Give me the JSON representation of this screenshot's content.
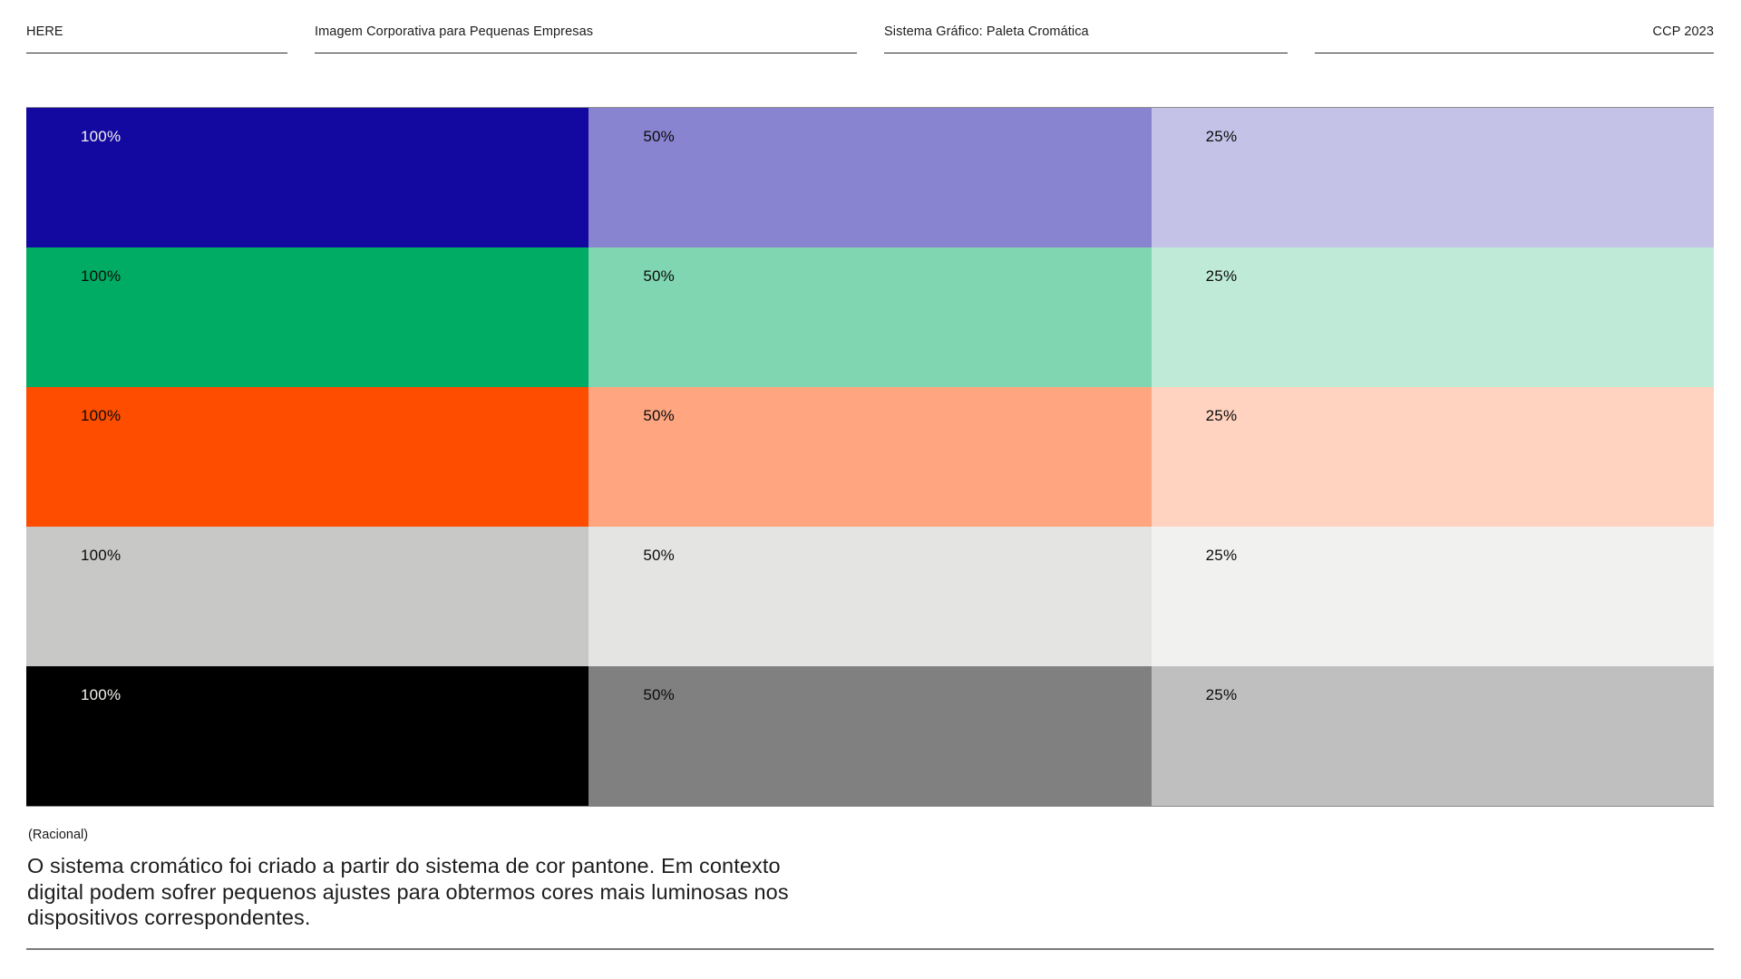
{
  "header": {
    "columns": [
      {
        "label": "HERE"
      },
      {
        "label": "Imagem Corporativa para Pequenas Empresas"
      },
      {
        "label": "Sistema Gráfico: Paleta Cromática"
      },
      {
        "label": "CCP 2023"
      }
    ]
  },
  "palette": {
    "tint_labels": [
      "100%",
      "50%",
      "25%"
    ],
    "rows": [
      {
        "name": "primary-blue",
        "swatches": [
          {
            "label": "100%",
            "color": "#1309A0",
            "label_color": "#F3F1EC"
          },
          {
            "label": "50%",
            "color": "#8984D0",
            "label_color": "#0B0B0B"
          },
          {
            "label": "25%",
            "color": "#C5C2E8",
            "label_color": "#0B0B0B"
          }
        ]
      },
      {
        "name": "green",
        "swatches": [
          {
            "label": "100%",
            "color": "#00AC63",
            "label_color": "#0B0B0B"
          },
          {
            "label": "50%",
            "color": "#80D6B1",
            "label_color": "#0B0B0B"
          },
          {
            "label": "25%",
            "color": "#BFEAD8",
            "label_color": "#0B0B0B"
          }
        ]
      },
      {
        "name": "orange",
        "swatches": [
          {
            "label": "100%",
            "color": "#FF4D00",
            "label_color": "#0B0B0B"
          },
          {
            "label": "50%",
            "color": "#FFA680",
            "label_color": "#0B0B0B"
          },
          {
            "label": "25%",
            "color": "#FFD3BF",
            "label_color": "#0B0B0B"
          }
        ]
      },
      {
        "name": "light-gray",
        "swatches": [
          {
            "label": "100%",
            "color": "#C8C8C6",
            "label_color": "#0B0B0B"
          },
          {
            "label": "50%",
            "color": "#E4E4E3",
            "label_color": "#0B0B0B"
          },
          {
            "label": "25%",
            "color": "#F1F1F0",
            "label_color": "#0B0B0B"
          }
        ]
      },
      {
        "name": "black",
        "swatches": [
          {
            "label": "100%",
            "color": "#000000",
            "label_color": "#F3F1EC"
          },
          {
            "label": "50%",
            "color": "#808080",
            "label_color": "#0B0B0B"
          },
          {
            "label": "25%",
            "color": "#BFBFBF",
            "label_color": "#0B0B0B"
          }
        ]
      }
    ]
  },
  "rationale": {
    "heading": "(Racional)",
    "body": "O sistema cromático foi criado a partir do sistema de cor pantone. Em contexto\ndigital podem sofrer pequenos ajustes para obtermos cores mais luminosas nos\ndispositivos correspondentes."
  }
}
